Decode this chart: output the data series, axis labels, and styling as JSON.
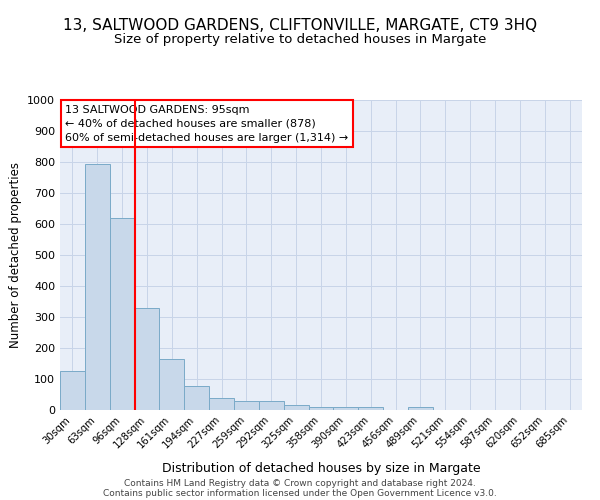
{
  "title": "13, SALTWOOD GARDENS, CLIFTONVILLE, MARGATE, CT9 3HQ",
  "subtitle": "Size of property relative to detached houses in Margate",
  "xlabel": "Distribution of detached houses by size in Margate",
  "ylabel": "Number of detached properties",
  "categories": [
    "30sqm",
    "63sqm",
    "96sqm",
    "128sqm",
    "161sqm",
    "194sqm",
    "227sqm",
    "259sqm",
    "292sqm",
    "325sqm",
    "358sqm",
    "390sqm",
    "423sqm",
    "456sqm",
    "489sqm",
    "521sqm",
    "554sqm",
    "587sqm",
    "620sqm",
    "652sqm",
    "685sqm"
  ],
  "values": [
    125,
    795,
    620,
    330,
    163,
    78,
    40,
    28,
    28,
    15,
    10,
    10,
    10,
    0,
    10,
    0,
    0,
    0,
    0,
    0,
    0
  ],
  "bar_color": "#c8d8ea",
  "bar_edge_color": "#7aaac8",
  "grid_color": "#c8d4e8",
  "background_color": "#e8eef8",
  "red_line_index": 2,
  "annotation_text": "13 SALTWOOD GARDENS: 95sqm\n← 40% of detached houses are smaller (878)\n60% of semi-detached houses are larger (1,314) →",
  "annotation_box_color": "white",
  "annotation_box_edge_color": "red",
  "footnote_line1": "Contains HM Land Registry data © Crown copyright and database right 2024.",
  "footnote_line2": "Contains public sector information licensed under the Open Government Licence v3.0.",
  "ylim": [
    0,
    1000
  ],
  "yticks": [
    0,
    100,
    200,
    300,
    400,
    500,
    600,
    700,
    800,
    900,
    1000
  ]
}
